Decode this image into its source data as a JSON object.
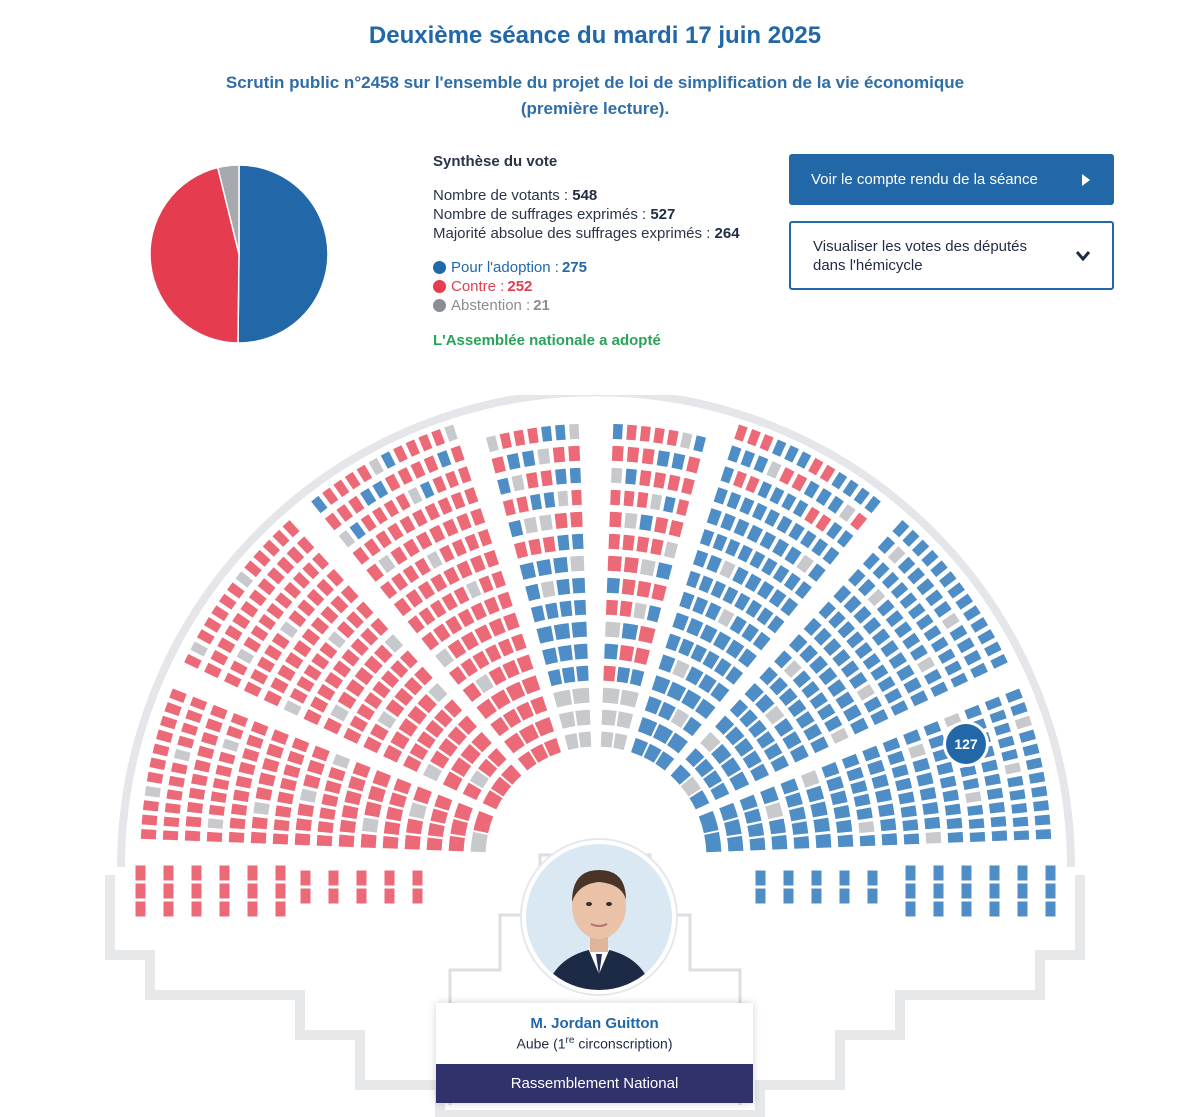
{
  "header": {
    "title": "Deuxième séance du mardi 17 juin 2025",
    "subtitle": "Scrutin public n°2458 sur l'ensemble du projet de loi de simplification de la vie économique (première lecture)."
  },
  "synthesis": {
    "heading": "Synthèse du vote",
    "stats": [
      {
        "label": "Nombre de votants : ",
        "value": "548"
      },
      {
        "label": "Nombre de suffrages exprimés : ",
        "value": "527"
      },
      {
        "label": "Majorité absolue des suffrages exprimés : ",
        "value": "264"
      }
    ],
    "legend": [
      {
        "label": "Pour l'adoption : ",
        "value": "275",
        "color": "#2267a8"
      },
      {
        "label": "Contre : ",
        "value": "252",
        "color": "#e53d4f"
      },
      {
        "label": "Abstention : ",
        "value": "21",
        "color": "#8a8d91"
      }
    ],
    "result": "L'Assemblée nationale a adopté"
  },
  "pie": {
    "pour": 275,
    "contre": 252,
    "abstention": 21
  },
  "buttons": {
    "report": "Voir le compte rendu de la séance",
    "hemicycle": "Visualiser les votes des députés dans l'hémicycle"
  },
  "colors": {
    "pour": "#4f8dc6",
    "contre": "#ec6a78",
    "abstention": "#c7c9cc",
    "empty": "#ffffff",
    "accent": "#2267a8",
    "party": "#30336b"
  },
  "hemicycle": {
    "badge": "127",
    "icons": {
      "photo": "deputy-photo-icon"
    }
  },
  "deputy": {
    "name": "M. Jordan Guitton",
    "circonscription_pre": "Aube (1",
    "circonscription_sup": "re",
    "circonscription_post": " circonscription)",
    "party": "Rassemblement National"
  }
}
